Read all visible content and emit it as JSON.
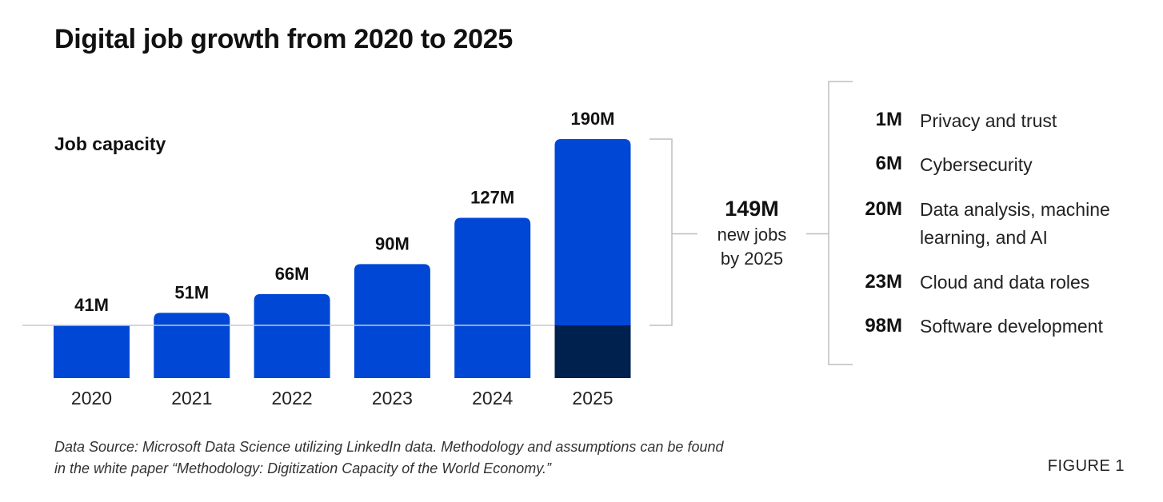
{
  "title": "Digital job growth from 2020 to 2025",
  "chart_data": {
    "type": "bar",
    "ylabel": "Job capacity",
    "categories": [
      "2020",
      "2021",
      "2022",
      "2023",
      "2024",
      "2025"
    ],
    "values": [
      41,
      51,
      66,
      90,
      127,
      190
    ],
    "value_labels": [
      "41M",
      "51M",
      "66M",
      "90M",
      "127M",
      "190M"
    ],
    "baseline_value": 41,
    "grid": false,
    "colors": {
      "bar": "#0047D6",
      "base_2025": "#00204E",
      "baseline": "#C8C8C8",
      "bracket": "#BDBDBD"
    },
    "callout": {
      "value": "149M",
      "line1": "new jobs",
      "line2": "by 2025"
    },
    "breakdown": [
      {
        "value": "1M",
        "label": "Privacy and trust"
      },
      {
        "value": "6M",
        "label": "Cybersecurity"
      },
      {
        "value": "20M",
        "label": "Data analysis, machine",
        "label2": "learning, and AI"
      },
      {
        "value": "23M",
        "label": "Cloud and data roles"
      },
      {
        "value": "98M",
        "label": "Software development"
      }
    ]
  },
  "source": "Data Source: Microsoft Data Science utilizing LinkedIn data. Methodology and assumptions can be found in the white paper “Methodology: Digitization Capacity of the World Economy.”",
  "figure_label": "FIGURE 1"
}
